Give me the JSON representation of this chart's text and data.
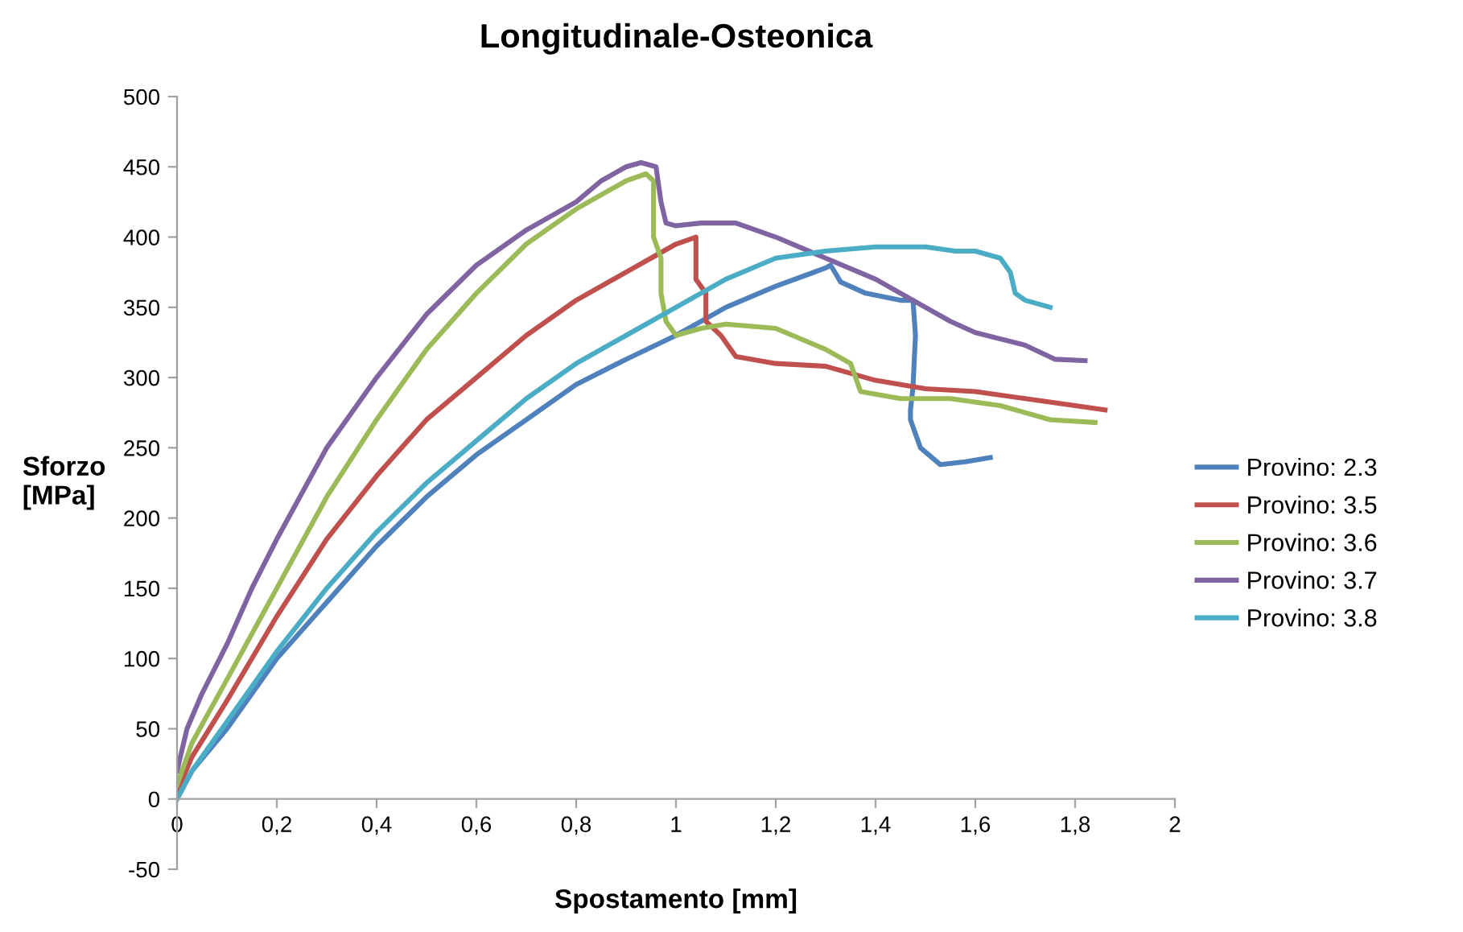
{
  "chart_data": {
    "type": "line",
    "title": "Longitudinale-Osteonica",
    "xlabel": "Spostamento [mm]",
    "ylabel": "Sforzo\n[MPa]",
    "xlim": [
      0,
      2
    ],
    "xticks": [
      0,
      {
        "value": 0.2,
        "label": "0,2"
      },
      {
        "value": 0.4,
        "label": "0,4"
      },
      {
        "value": 0.6,
        "label": "0,6"
      },
      {
        "value": 0.8,
        "label": "0,8"
      },
      1,
      {
        "value": 1.2,
        "label": "1,2"
      },
      {
        "value": 1.4,
        "label": "1,4"
      },
      {
        "value": 1.6,
        "label": "1,6"
      },
      {
        "value": 1.8,
        "label": "1,8"
      },
      2
    ],
    "ylim": [
      -50,
      500
    ],
    "yticks": [
      -50,
      0,
      50,
      100,
      150,
      200,
      250,
      300,
      350,
      400,
      450,
      500
    ],
    "grid": false,
    "legend": "right",
    "marker": "none",
    "line_style": "solid",
    "series": [
      {
        "name": "Provino: 2.3",
        "color": "#4f81bd",
        "x": [
          0,
          0.03,
          0.1,
          0.2,
          0.3,
          0.4,
          0.5,
          0.6,
          0.7,
          0.8,
          0.9,
          1.0,
          1.1,
          1.2,
          1.3,
          1.31,
          1.33,
          1.38,
          1.45,
          1.475,
          1.48,
          1.475,
          1.47,
          1.47,
          1.49,
          1.53,
          1.58,
          1.63
        ],
        "values": [
          0,
          20,
          50,
          100,
          140,
          180,
          215,
          245,
          270,
          295,
          313,
          330,
          350,
          365,
          378,
          380,
          368,
          360,
          355,
          355,
          330,
          293,
          277,
          270,
          250,
          238,
          240,
          243
        ]
      },
      {
        "name": "Provino: 3.5",
        "color": "#c0504d",
        "x": [
          0,
          0.03,
          0.1,
          0.2,
          0.3,
          0.4,
          0.5,
          0.6,
          0.7,
          0.8,
          0.9,
          0.95,
          1.0,
          1.04,
          1.04,
          1.06,
          1.06,
          1.09,
          1.12,
          1.2,
          1.3,
          1.4,
          1.5,
          1.6,
          1.7,
          1.8,
          1.86
        ],
        "values": [
          5,
          30,
          70,
          130,
          185,
          230,
          270,
          300,
          330,
          355,
          375,
          385,
          395,
          400,
          370,
          360,
          340,
          330,
          315,
          310,
          308,
          298,
          292,
          290,
          285,
          280,
          277
        ]
      },
      {
        "name": "Provino: 3.6",
        "color": "#9bbb59",
        "x": [
          0,
          0.03,
          0.1,
          0.2,
          0.3,
          0.4,
          0.5,
          0.6,
          0.7,
          0.8,
          0.9,
          0.94,
          0.955,
          0.955,
          0.97,
          0.97,
          0.98,
          1.0,
          1.05,
          1.1,
          1.2,
          1.3,
          1.35,
          1.37,
          1.45,
          1.55,
          1.65,
          1.75,
          1.84
        ],
        "values": [
          10,
          40,
          85,
          150,
          215,
          270,
          320,
          360,
          395,
          420,
          440,
          445,
          440,
          400,
          385,
          360,
          340,
          330,
          335,
          338,
          335,
          320,
          310,
          290,
          285,
          285,
          280,
          270,
          268
        ]
      },
      {
        "name": "Provino: 3.7",
        "color": "#8064a2",
        "x": [
          0,
          0.02,
          0.05,
          0.1,
          0.15,
          0.2,
          0.3,
          0.4,
          0.5,
          0.6,
          0.7,
          0.75,
          0.8,
          0.85,
          0.9,
          0.93,
          0.96,
          0.97,
          0.98,
          1.0,
          1.05,
          1.12,
          1.2,
          1.3,
          1.4,
          1.5,
          1.55,
          1.6,
          1.7,
          1.76,
          1.82
        ],
        "values": [
          20,
          50,
          75,
          110,
          150,
          185,
          250,
          300,
          345,
          380,
          405,
          415,
          425,
          440,
          450,
          453,
          450,
          425,
          410,
          408,
          410,
          410,
          400,
          385,
          370,
          350,
          340,
          332,
          323,
          313,
          312
        ]
      },
      {
        "name": "Provino: 3.8",
        "color": "#4bacc6",
        "x": [
          0,
          0.03,
          0.1,
          0.2,
          0.3,
          0.4,
          0.5,
          0.6,
          0.7,
          0.8,
          0.9,
          1.0,
          1.1,
          1.2,
          1.3,
          1.4,
          1.5,
          1.56,
          1.6,
          1.65,
          1.67,
          1.68,
          1.7,
          1.75
        ],
        "values": [
          0,
          20,
          55,
          105,
          150,
          190,
          225,
          255,
          285,
          310,
          330,
          350,
          370,
          385,
          390,
          393,
          393,
          390,
          390,
          385,
          375,
          360,
          355,
          350
        ]
      }
    ]
  }
}
